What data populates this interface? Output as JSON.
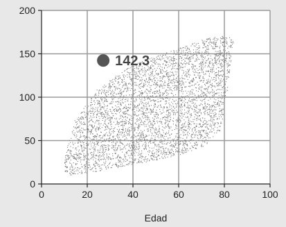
{
  "chart_data": {
    "type": "scatter",
    "title": "",
    "xlabel": "Edad",
    "ylabel": "",
    "xlim": [
      0,
      100
    ],
    "ylim": [
      0,
      200
    ],
    "xticks": [
      0,
      20,
      40,
      60,
      80,
      100
    ],
    "yticks": [
      0,
      50,
      100,
      150,
      200
    ],
    "grid": true,
    "point_color": "#7a7a7a",
    "highlight": {
      "x": 27,
      "y": 142.3,
      "label": "142.3",
      "color": "#555555"
    },
    "density_region": [
      [
        11,
        10
      ],
      [
        20,
        13
      ],
      [
        35,
        20
      ],
      [
        50,
        28
      ],
      [
        62,
        35
      ],
      [
        72,
        45
      ],
      [
        78,
        62
      ],
      [
        81,
        100
      ],
      [
        83,
        148
      ],
      [
        84,
        165
      ],
      [
        81,
        172
      ],
      [
        72,
        168
      ],
      [
        55,
        152
      ],
      [
        40,
        138
      ],
      [
        25,
        112
      ],
      [
        14,
        72
      ],
      [
        10,
        30
      ],
      [
        10,
        13
      ]
    ]
  }
}
